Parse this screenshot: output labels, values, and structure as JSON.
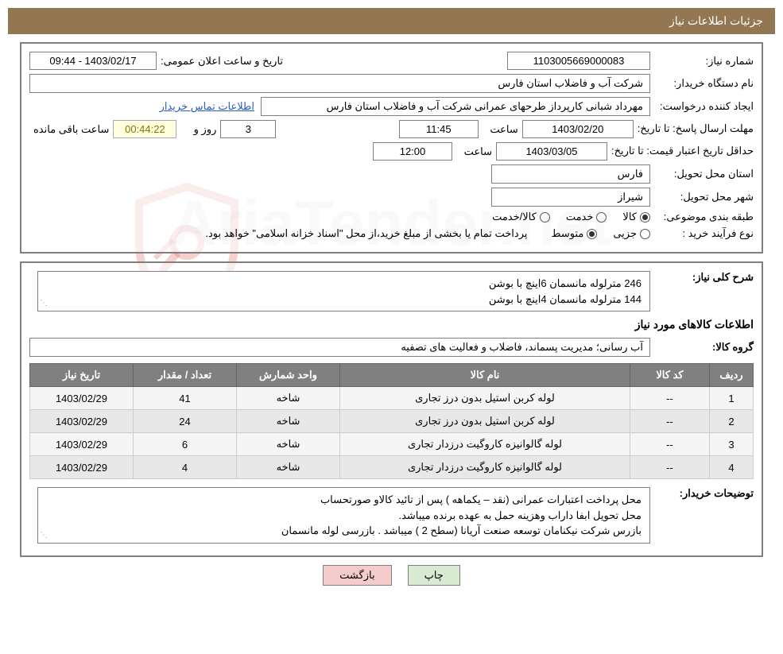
{
  "header": {
    "title": "جزئیات اطلاعات نیاز"
  },
  "watermark": {
    "text": "AriaTender.net"
  },
  "form": {
    "request_number_label": "شماره نیاز:",
    "request_number": "1103005669000083",
    "announce_datetime_label": "تاریخ و ساعت اعلان عمومی:",
    "announce_datetime": "1403/02/17 - 09:44",
    "buyer_name_label": "نام دستگاه خریدار:",
    "buyer_name": "شرکت آب و فاضلاب استان فارس",
    "creator_label": "ایجاد کننده درخواست:",
    "creator": "مهرداد شبانی کارپرداز طرحهای عمرانی  شرکت آب و فاضلاب استان فارس",
    "contact_link": "اطلاعات تماس خریدار",
    "deadline_label": "مهلت ارسال پاسخ: تا تاریخ:",
    "deadline_date": "1403/02/20",
    "deadline_time_label": "ساعت",
    "deadline_time": "11:45",
    "days_label": "روز و",
    "days_remaining": "3",
    "countdown": "00:44:22",
    "remaining_label": "ساعت باقی مانده",
    "validity_label": "حداقل تاریخ اعتبار قیمت: تا تاریخ:",
    "validity_date": "1403/03/05",
    "validity_time_label": "ساعت",
    "validity_time": "12:00",
    "province_label": "استان محل تحویل:",
    "province": "فارس",
    "city_label": "شهر محل تحویل:",
    "city": "شیراز",
    "category_label": "طبقه بندی موضوعی:",
    "category_options": {
      "goods": "کالا",
      "service": "خدمت",
      "goods_service": "کالا/خدمت"
    },
    "purchase_type_label": "نوع فرآیند خرید :",
    "purchase_options": {
      "partial": "جزیی",
      "medium": "متوسط"
    },
    "payment_note": "پرداخت تمام یا بخشی از مبلغ خرید،از محل \"اسناد خزانه اسلامی\" خواهد بود."
  },
  "description": {
    "title_label": "شرح کلی نیاز:",
    "line1": "246 مترلوله مانسمان 6اینچ با بوشن",
    "line2": "144 مترلوله مانسمان 4اینچ با بوشن"
  },
  "items_section": {
    "heading": "اطلاعات کالاهای مورد نیاز",
    "group_label": "گروه کالا:",
    "group": "آب رسانی؛ مدیریت پسماند، فاضلاب و فعالیت های تصفیه"
  },
  "table": {
    "headers": {
      "row": "ردیف",
      "code": "کد کالا",
      "name": "نام کالا",
      "unit": "واحد شمارش",
      "qty": "تعداد / مقدار",
      "date": "تاریخ نیاز"
    },
    "rows": [
      {
        "row": "1",
        "code": "--",
        "name": "لوله کربن استیل بدون درز تجاری",
        "unit": "شاخه",
        "qty": "41",
        "date": "1403/02/29"
      },
      {
        "row": "2",
        "code": "--",
        "name": "لوله کربن استیل بدون درز تجاری",
        "unit": "شاخه",
        "qty": "24",
        "date": "1403/02/29"
      },
      {
        "row": "3",
        "code": "--",
        "name": "لوله گالوانیزه کاروگیت درزدار تجاری",
        "unit": "شاخه",
        "qty": "6",
        "date": "1403/02/29"
      },
      {
        "row": "4",
        "code": "--",
        "name": "لوله گالوانیزه کاروگیت درزدار تجاری",
        "unit": "شاخه",
        "qty": "4",
        "date": "1403/02/29"
      }
    ]
  },
  "buyer_notes": {
    "label": "توضیحات خریدار:",
    "line1": "محل پرداخت اعتبارات عمرانی (نقد – یکماهه ) پس از تائید کالاو صورتحساب",
    "line2": "محل تحویل ابفا  داراب  وهزینه حمل به عهده برنده میباشد.",
    "line3": "بازرس شرکت نیکنامان توسعه صنعت آریانا (سطح  2 )  میباشد . بازرسی لوله مانسمان"
  },
  "buttons": {
    "print": "چاپ",
    "back": "بازگشت"
  },
  "colors": {
    "header_bg": "#927752",
    "header_text": "#ffffff",
    "border": "#808080",
    "table_header_bg": "#808080",
    "link": "#2b5dbd",
    "countdown_text": "#8b7500",
    "btn_print": "#d9ead3",
    "btn_back": "#f4cccc"
  }
}
